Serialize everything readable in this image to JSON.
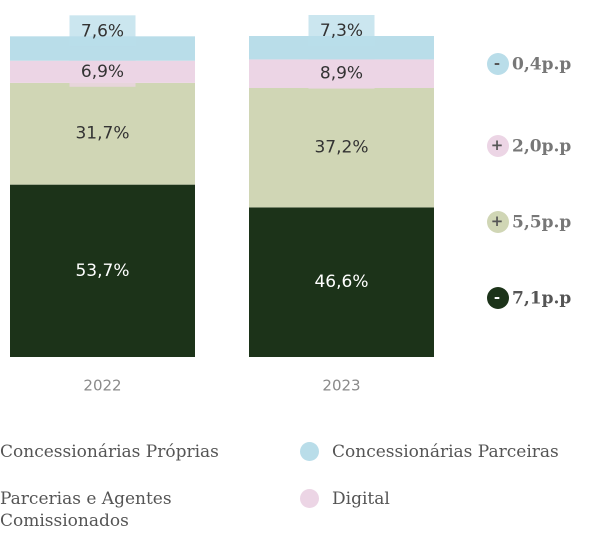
{
  "chart_data": {
    "type": "stacked-bar",
    "categories": [
      "2022",
      "2023"
    ],
    "ylim": [
      0,
      100
    ],
    "series": [
      {
        "name": "Concessionárias Próprias",
        "color": "#1c3319",
        "values": [
          53.7,
          46.6
        ],
        "value_labels": [
          "53,7%",
          "46,6%"
        ]
      },
      {
        "name": "Parcerias e Agentes Comissionados",
        "color": "#d0d6b5",
        "values": [
          31.7,
          37.2
        ],
        "value_labels": [
          "31,7%",
          "37,2%"
        ]
      },
      {
        "name": "Digital",
        "color": "#ecd5e5",
        "values": [
          6.9,
          8.9
        ],
        "value_labels": [
          "6,9%",
          "8,9%"
        ]
      },
      {
        "name": "Concessionárias Parceiras",
        "color": "#b9dde9",
        "values": [
          7.6,
          7.3
        ],
        "value_labels": [
          "7,6%",
          "7,3%"
        ]
      }
    ],
    "annotations": [
      {
        "sign": "-",
        "text": "0,4p.p"
      },
      {
        "sign": "+",
        "text": "2,0p.p"
      },
      {
        "sign": "+",
        "text": "5,5p.p"
      },
      {
        "sign": "-",
        "text": "7,1p.p"
      }
    ]
  }
}
